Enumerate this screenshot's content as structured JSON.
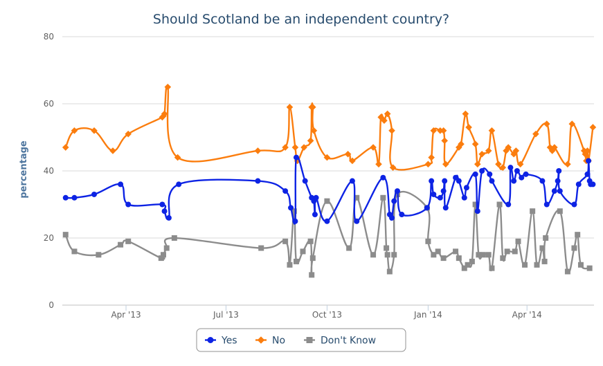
{
  "chart_data": {
    "type": "line",
    "title": "Should Scotland be an independent country?",
    "xlabel": "",
    "ylabel": "percentage",
    "ylim": [
      0,
      80
    ],
    "yticks": [
      0,
      20,
      40,
      60,
      80
    ],
    "xlim": [
      "2013-02-02",
      "2014-06-01"
    ],
    "xticks": [
      {
        "label": "Apr '13",
        "date": "2013-04-01"
      },
      {
        "label": "Jul '13",
        "date": "2013-07-01"
      },
      {
        "label": "Oct '13",
        "date": "2013-10-01"
      },
      {
        "label": "Jan '14",
        "date": "2014-01-01"
      },
      {
        "label": "Apr '14",
        "date": "2014-04-01"
      }
    ],
    "grid": true,
    "legend_position": "bottom-center",
    "series": [
      {
        "name": "Yes",
        "color": "#0d23e4",
        "marker": "circle",
        "points": [
          [
            "2013-02-05",
            32
          ],
          [
            "2013-02-13",
            32
          ],
          [
            "2013-03-03",
            33
          ],
          [
            "2013-03-27",
            36
          ],
          [
            "2013-04-03",
            30
          ],
          [
            "2013-05-04",
            30
          ],
          [
            "2013-05-06",
            28
          ],
          [
            "2013-05-10",
            26
          ],
          [
            "2013-05-19",
            36
          ],
          [
            "2013-07-30",
            37
          ],
          [
            "2013-08-24",
            34
          ],
          [
            "2013-08-29",
            29
          ],
          [
            "2013-09-02",
            25
          ],
          [
            "2013-09-03",
            44
          ],
          [
            "2013-09-11",
            37
          ],
          [
            "2013-09-17",
            32
          ],
          [
            "2013-09-19",
            31
          ],
          [
            "2013-09-20",
            27
          ],
          [
            "2013-09-21",
            32
          ],
          [
            "2013-10-01",
            25
          ],
          [
            "2013-10-24",
            37
          ],
          [
            "2013-10-28",
            25
          ],
          [
            "2013-11-21",
            38
          ],
          [
            "2013-11-27",
            27
          ],
          [
            "2013-11-29",
            26
          ],
          [
            "2013-12-01",
            31
          ],
          [
            "2013-12-04",
            34
          ],
          [
            "2013-12-08",
            27
          ],
          [
            "2013-12-31",
            29
          ],
          [
            "2014-01-04",
            37
          ],
          [
            "2014-01-06",
            33
          ],
          [
            "2014-01-12",
            32
          ],
          [
            "2014-01-15",
            34
          ],
          [
            "2014-01-16",
            37
          ],
          [
            "2014-01-17",
            29
          ],
          [
            "2014-01-26",
            38
          ],
          [
            "2014-01-29",
            37
          ],
          [
            "2014-02-03",
            32
          ],
          [
            "2014-02-05",
            35
          ],
          [
            "2014-02-13",
            39
          ],
          [
            "2014-02-15",
            28
          ],
          [
            "2014-02-19",
            40
          ],
          [
            "2014-02-26",
            39
          ],
          [
            "2014-02-28",
            37
          ],
          [
            "2014-03-15",
            30
          ],
          [
            "2014-03-17",
            41
          ],
          [
            "2014-03-20",
            37
          ],
          [
            "2014-03-23",
            40
          ],
          [
            "2014-03-27",
            38
          ],
          [
            "2014-03-31",
            39
          ],
          [
            "2014-04-15",
            37
          ],
          [
            "2014-04-19",
            30
          ],
          [
            "2014-04-26",
            34
          ],
          [
            "2014-04-29",
            37
          ],
          [
            "2014-04-30",
            40
          ],
          [
            "2014-05-01",
            34
          ],
          [
            "2014-05-14",
            30
          ],
          [
            "2014-05-18",
            36
          ],
          [
            "2014-05-26",
            39
          ],
          [
            "2014-05-27",
            43
          ],
          [
            "2014-05-28",
            37
          ],
          [
            "2014-05-29",
            36
          ],
          [
            "2014-05-31",
            36
          ]
        ]
      },
      {
        "name": "No",
        "color": "#fb7d0e",
        "marker": "diamond",
        "points": [
          [
            "2013-02-05",
            47
          ],
          [
            "2013-02-13",
            52
          ],
          [
            "2013-03-03",
            52
          ],
          [
            "2013-03-20",
            46
          ],
          [
            "2013-04-03",
            51
          ],
          [
            "2013-05-04",
            56
          ],
          [
            "2013-05-06",
            57
          ],
          [
            "2013-05-09",
            65
          ],
          [
            "2013-05-18",
            44
          ],
          [
            "2013-07-30",
            46
          ],
          [
            "2013-08-24",
            47
          ],
          [
            "2013-08-28",
            59
          ],
          [
            "2013-09-02",
            47
          ],
          [
            "2013-09-04",
            43
          ],
          [
            "2013-09-10",
            47
          ],
          [
            "2013-09-16",
            49
          ],
          [
            "2013-09-17",
            59
          ],
          [
            "2013-09-18",
            59
          ],
          [
            "2013-09-19",
            52
          ],
          [
            "2013-10-01",
            44
          ],
          [
            "2013-10-20",
            45
          ],
          [
            "2013-10-24",
            43
          ],
          [
            "2013-11-12",
            47
          ],
          [
            "2013-11-17",
            42
          ],
          [
            "2013-11-19",
            56
          ],
          [
            "2013-11-22",
            55
          ],
          [
            "2013-11-25",
            57
          ],
          [
            "2013-11-29",
            52
          ],
          [
            "2013-11-30",
            41
          ],
          [
            "2014-01-01",
            42
          ],
          [
            "2014-01-04",
            44
          ],
          [
            "2014-01-06",
            52
          ],
          [
            "2014-01-12",
            52
          ],
          [
            "2014-01-15",
            52
          ],
          [
            "2014-01-16",
            49
          ],
          [
            "2014-01-17",
            42
          ],
          [
            "2014-01-29",
            47
          ],
          [
            "2014-01-31",
            48
          ],
          [
            "2014-02-04",
            57
          ],
          [
            "2014-02-07",
            53
          ],
          [
            "2014-02-13",
            48
          ],
          [
            "2014-02-15",
            42
          ],
          [
            "2014-02-19",
            45
          ],
          [
            "2014-02-25",
            46
          ],
          [
            "2014-02-28",
            52
          ],
          [
            "2014-03-06",
            42
          ],
          [
            "2014-03-10",
            41
          ],
          [
            "2014-03-13",
            46
          ],
          [
            "2014-03-15",
            47
          ],
          [
            "2014-03-20",
            45
          ],
          [
            "2014-03-22",
            46
          ],
          [
            "2014-03-26",
            42
          ],
          [
            "2014-04-09",
            51
          ],
          [
            "2014-04-19",
            54
          ],
          [
            "2014-04-22",
            47
          ],
          [
            "2014-04-24",
            46
          ],
          [
            "2014-04-26",
            47
          ],
          [
            "2014-05-08",
            42
          ],
          [
            "2014-05-12",
            54
          ],
          [
            "2014-05-23",
            46
          ],
          [
            "2014-05-24",
            45
          ],
          [
            "2014-05-25",
            43
          ],
          [
            "2014-05-26",
            46
          ],
          [
            "2014-05-27",
            43
          ],
          [
            "2014-05-31",
            53
          ]
        ]
      },
      {
        "name": "Don't Know",
        "color": "#8c8c8c",
        "marker": "square",
        "points": [
          [
            "2013-02-05",
            21
          ],
          [
            "2013-02-13",
            16
          ],
          [
            "2013-03-07",
            15
          ],
          [
            "2013-03-27",
            18
          ],
          [
            "2013-04-03",
            19
          ],
          [
            "2013-05-03",
            14
          ],
          [
            "2013-05-05",
            15
          ],
          [
            "2013-05-08",
            17
          ],
          [
            "2013-05-15",
            20
          ],
          [
            "2013-08-02",
            17
          ],
          [
            "2013-08-24",
            19
          ],
          [
            "2013-08-28",
            12
          ],
          [
            "2013-09-01",
            28
          ],
          [
            "2013-09-03",
            13
          ],
          [
            "2013-09-09",
            16
          ],
          [
            "2013-09-16",
            19
          ],
          [
            "2013-09-17",
            9
          ],
          [
            "2013-09-18",
            14
          ],
          [
            "2013-10-01",
            31
          ],
          [
            "2013-10-21",
            17
          ],
          [
            "2013-10-28",
            32
          ],
          [
            "2013-11-12",
            15
          ],
          [
            "2013-11-21",
            32
          ],
          [
            "2013-11-24",
            17
          ],
          [
            "2013-11-25",
            15
          ],
          [
            "2013-11-27",
            10
          ],
          [
            "2013-12-01",
            15
          ],
          [
            "2013-12-04",
            33
          ],
          [
            "2013-12-31",
            29
          ],
          [
            "2014-01-01",
            19
          ],
          [
            "2014-01-06",
            15
          ],
          [
            "2014-01-10",
            16
          ],
          [
            "2014-01-15",
            14
          ],
          [
            "2014-01-26",
            16
          ],
          [
            "2014-01-29",
            14
          ],
          [
            "2014-02-03",
            11
          ],
          [
            "2014-02-06",
            12
          ],
          [
            "2014-02-10",
            13
          ],
          [
            "2014-02-13",
            30
          ],
          [
            "2014-02-16",
            15
          ],
          [
            "2014-02-20",
            15
          ],
          [
            "2014-02-25",
            15
          ],
          [
            "2014-02-28",
            11
          ],
          [
            "2014-03-07",
            30
          ],
          [
            "2014-03-10",
            14
          ],
          [
            "2014-03-14",
            16
          ],
          [
            "2014-03-21",
            16
          ],
          [
            "2014-03-24",
            19
          ],
          [
            "2014-03-30",
            12
          ],
          [
            "2014-04-06",
            28
          ],
          [
            "2014-04-10",
            12
          ],
          [
            "2014-04-15",
            17
          ],
          [
            "2014-04-17",
            13
          ],
          [
            "2014-04-18",
            20
          ],
          [
            "2014-05-01",
            28
          ],
          [
            "2014-05-08",
            10
          ],
          [
            "2014-05-14",
            17
          ],
          [
            "2014-05-17",
            21
          ],
          [
            "2014-05-20",
            12
          ],
          [
            "2014-05-28",
            11
          ]
        ]
      }
    ]
  }
}
